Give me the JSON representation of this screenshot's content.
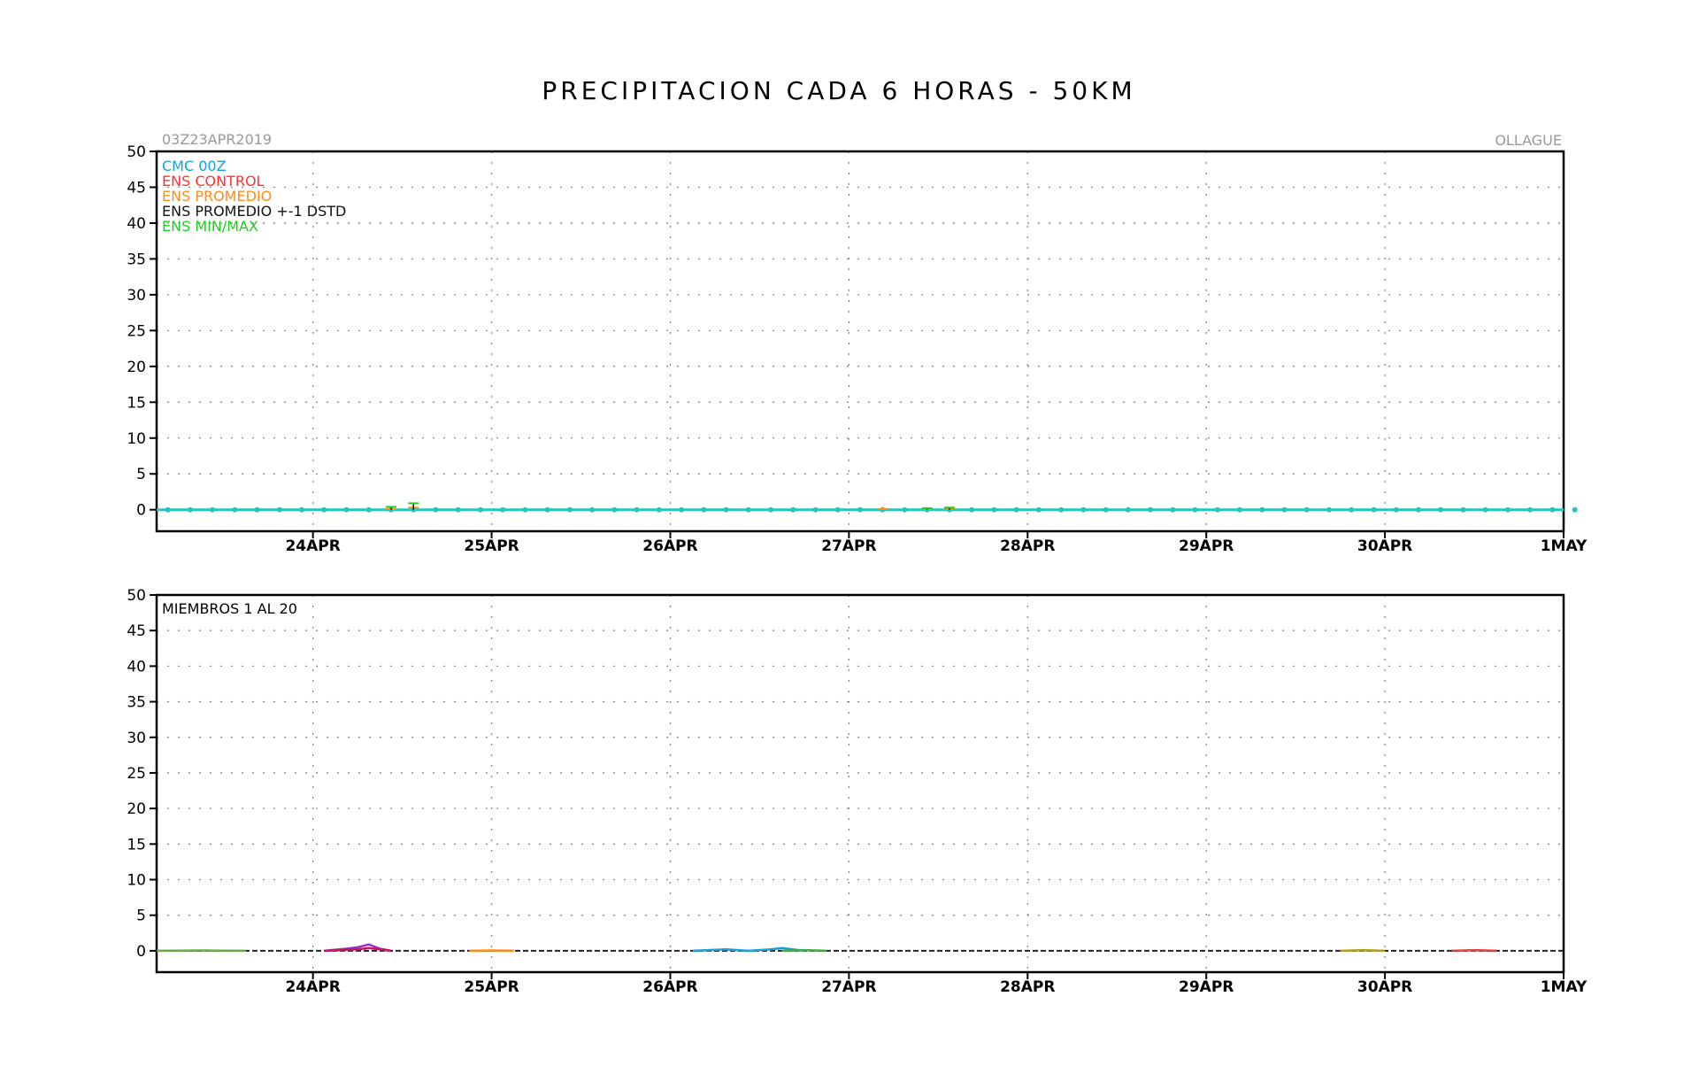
{
  "title": "PRECIPITACION CADA 6 HORAS - 50KM",
  "init_label": "03Z23APR2019",
  "location_label": "OLLAGUE",
  "colors": {
    "cmc": "#1a9fd8",
    "control": "#ff3333",
    "promedio": "#ff8c1a",
    "std": "#111111",
    "minmax": "#22cc22",
    "baseline": "#22c4c4",
    "grid": "#888888",
    "axis": "#000000"
  },
  "chart_data": [
    {
      "type": "line",
      "panel": "top",
      "yticks": [
        0,
        5,
        10,
        15,
        20,
        25,
        30,
        35,
        40,
        45,
        50
      ],
      "ylim": [
        -3,
        50
      ],
      "xlim": [
        0,
        31.5
      ],
      "x_tick_labels": [
        "24APR",
        "25APR",
        "26APR",
        "27APR",
        "28APR",
        "29APR",
        "30APR",
        "1MAY"
      ],
      "x_tick_positions": [
        3.5,
        7.5,
        11.5,
        15.5,
        19.5,
        23.5,
        27.5,
        31.5
      ],
      "grid": true,
      "legend_placement": "top-left",
      "legend": [
        {
          "label": "CMC 00Z",
          "color_key": "cmc"
        },
        {
          "label": "ENS CONTROL",
          "color_key": "control"
        },
        {
          "label": "ENS PROMEDIO",
          "color_key": "promedio"
        },
        {
          "label": "ENS PROMEDIO +-1 DSTD",
          "color_key": "std"
        },
        {
          "label": "ENS MIN/MAX",
          "color_key": "minmax"
        }
      ],
      "series": [
        {
          "name": "CMC 00Z",
          "values": [
            0,
            0,
            0,
            0,
            0,
            0,
            0,
            0,
            0,
            0,
            0,
            0,
            0,
            0,
            0,
            0,
            0,
            0,
            0,
            0,
            0,
            0,
            0,
            0,
            0,
            0,
            0,
            0,
            0,
            0,
            0,
            0,
            0,
            0,
            0,
            0,
            0,
            0,
            0,
            0,
            0,
            0,
            0,
            0,
            0,
            0,
            0,
            0,
            0,
            0,
            0,
            0,
            0,
            0,
            0,
            0,
            0,
            0,
            0,
            0,
            0,
            0,
            0,
            0
          ]
        },
        {
          "name": "ENS PROMEDIO",
          "values": [
            0,
            0,
            0,
            0,
            0,
            0,
            0,
            0,
            0,
            0,
            0.1,
            0.3,
            0,
            0,
            0,
            0,
            0,
            0,
            0,
            0,
            0,
            0,
            0,
            0,
            0,
            0,
            0,
            0,
            0,
            0,
            0,
            0,
            0.1,
            0,
            0.1,
            0.1,
            0,
            0,
            0,
            0,
            0,
            0,
            0,
            0,
            0,
            0,
            0,
            0,
            0,
            0,
            0,
            0,
            0,
            0,
            0,
            0,
            0,
            0,
            0,
            0,
            0,
            0,
            0,
            0
          ]
        }
      ],
      "error_bars": [
        {
          "x_index": 10,
          "low": 0,
          "high": 0.4
        },
        {
          "x_index": 11,
          "low": 0,
          "high": 0.9
        },
        {
          "x_index": 34,
          "low": 0,
          "high": 0.2
        },
        {
          "x_index": 35,
          "low": 0,
          "high": 0.3
        }
      ]
    },
    {
      "type": "line",
      "panel": "bottom",
      "label": "MIEMBROS 1 AL 20",
      "yticks": [
        0,
        5,
        10,
        15,
        20,
        25,
        30,
        35,
        40,
        45,
        50
      ],
      "ylim": [
        -3,
        50
      ],
      "xlim": [
        0,
        31.5
      ],
      "x_tick_labels": [
        "24APR",
        "25APR",
        "26APR",
        "27APR",
        "28APR",
        "29APR",
        "30APR",
        "1MAY"
      ],
      "x_tick_positions": [
        3.5,
        7.5,
        11.5,
        15.5,
        19.5,
        23.5,
        27.5,
        31.5
      ],
      "grid": true,
      "series": [
        {
          "color": "#9b2fc9",
          "points": [
            [
              3.75,
              0
            ],
            [
              4.25,
              0.3
            ],
            [
              4.5,
              0.5
            ],
            [
              4.75,
              0.9
            ],
            [
              5.0,
              0.3
            ],
            [
              5.25,
              0
            ]
          ]
        },
        {
          "color": "#c2185b",
          "points": [
            [
              3.75,
              0
            ],
            [
              4.5,
              0.2
            ],
            [
              4.75,
              0.4
            ],
            [
              5.25,
              0
            ]
          ]
        },
        {
          "color": "#1a9fd8",
          "points": [
            [
              12.0,
              0
            ],
            [
              12.75,
              0.2
            ],
            [
              13.25,
              0
            ],
            [
              13.75,
              0.2
            ],
            [
              14.0,
              0.4
            ],
            [
              14.5,
              0
            ]
          ]
        },
        {
          "color": "#44aa44",
          "points": [
            [
              14.0,
              0
            ],
            [
              14.5,
              0.1
            ],
            [
              15.0,
              0
            ]
          ]
        },
        {
          "color": "#b0a020",
          "points": [
            [
              26.5,
              0
            ],
            [
              27.0,
              0.1
            ],
            [
              27.5,
              0
            ]
          ]
        },
        {
          "color": "#e04040",
          "points": [
            [
              29.0,
              0
            ],
            [
              29.5,
              0.1
            ],
            [
              30.0,
              0
            ]
          ]
        },
        {
          "color": "#6aa84f",
          "points": [
            [
              0,
              0
            ],
            [
              1.0,
              0.05
            ],
            [
              2.0,
              0
            ]
          ]
        },
        {
          "color": "#ff8c1a",
          "points": [
            [
              7.0,
              0
            ],
            [
              7.5,
              0.05
            ],
            [
              8.0,
              0
            ]
          ]
        }
      ]
    }
  ]
}
